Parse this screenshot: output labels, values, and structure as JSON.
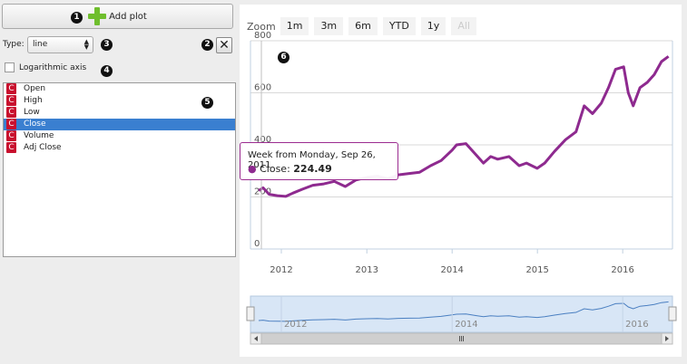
{
  "toolbar": {
    "add_plot_label": "Add plot"
  },
  "badges": [
    "1",
    "2",
    "3",
    "4",
    "5",
    "6"
  ],
  "type": {
    "label": "Type:",
    "value": "line"
  },
  "close": {
    "label": "✕"
  },
  "log_axis": {
    "label": "Logarithmic axis",
    "checked": false
  },
  "series_list": [
    {
      "icon": "C",
      "label": "Open"
    },
    {
      "icon": "C",
      "label": "High"
    },
    {
      "icon": "C",
      "label": "Low"
    },
    {
      "icon": "C",
      "label": "Close",
      "selected": true
    },
    {
      "icon": "C",
      "label": "Volume"
    },
    {
      "icon": "C",
      "label": "Adj Close"
    }
  ],
  "zoom": {
    "label": "Zoom",
    "buttons": [
      "1m",
      "3m",
      "6m",
      "YTD",
      "1y",
      "All"
    ],
    "disabled": [
      "All"
    ]
  },
  "tooltip": {
    "title": "Week from Monday, Sep 26, 2011",
    "series": "Close",
    "value": "224.49"
  },
  "colors": {
    "line": "#8e2a8f",
    "navigator": "#4a7fc1"
  },
  "chart_data": {
    "type": "line",
    "series": [
      {
        "name": "Close",
        "values": [
          [
            "2011-09-26",
            224.49
          ],
          [
            "2011-10-15",
            235
          ],
          [
            "2011-11-10",
            210
          ],
          [
            "2011-12-15",
            205
          ],
          [
            "2012-01-20",
            202
          ],
          [
            "2012-02-20",
            215
          ],
          [
            "2012-04-01",
            230
          ],
          [
            "2012-05-15",
            245
          ],
          [
            "2012-07-01",
            250
          ],
          [
            "2012-08-15",
            260
          ],
          [
            "2012-10-01",
            240
          ],
          [
            "2012-11-15",
            265
          ],
          [
            "2013-01-01",
            275
          ],
          [
            "2013-02-15",
            280
          ],
          [
            "2013-04-01",
            270
          ],
          [
            "2013-05-15",
            285
          ],
          [
            "2013-07-01",
            290
          ],
          [
            "2013-08-15",
            295
          ],
          [
            "2013-10-01",
            320
          ],
          [
            "2013-11-15",
            340
          ],
          [
            "2014-01-01",
            380
          ],
          [
            "2014-01-20",
            400
          ],
          [
            "2014-03-01",
            405
          ],
          [
            "2014-04-15",
            360
          ],
          [
            "2014-05-15",
            330
          ],
          [
            "2014-06-15",
            355
          ],
          [
            "2014-07-15",
            345
          ],
          [
            "2014-09-01",
            355
          ],
          [
            "2014-10-15",
            320
          ],
          [
            "2014-11-15",
            330
          ],
          [
            "2014-12-31",
            310
          ],
          [
            "2015-02-01",
            330
          ],
          [
            "2015-03-15",
            375
          ],
          [
            "2015-05-01",
            420
          ],
          [
            "2015-06-15",
            450
          ],
          [
            "2015-07-20",
            550
          ],
          [
            "2015-08-25",
            520
          ],
          [
            "2015-10-01",
            560
          ],
          [
            "2015-11-01",
            620
          ],
          [
            "2015-12-01",
            690
          ],
          [
            "2016-01-05",
            700
          ],
          [
            "2016-01-25",
            600
          ],
          [
            "2016-02-15",
            550
          ],
          [
            "2016-03-15",
            620
          ],
          [
            "2016-04-15",
            640
          ],
          [
            "2016-05-15",
            670
          ],
          [
            "2016-06-15",
            720
          ],
          [
            "2016-07-15",
            740
          ]
        ]
      }
    ],
    "x_ticks": [
      "2012",
      "2013",
      "2014",
      "2015",
      "2016"
    ],
    "y_ticks": [
      "0",
      "200",
      "400",
      "600",
      "800"
    ],
    "ylim": [
      0,
      800
    ],
    "xlim": [
      "2011-08-22",
      "2016-08-01"
    ],
    "grid": true
  }
}
